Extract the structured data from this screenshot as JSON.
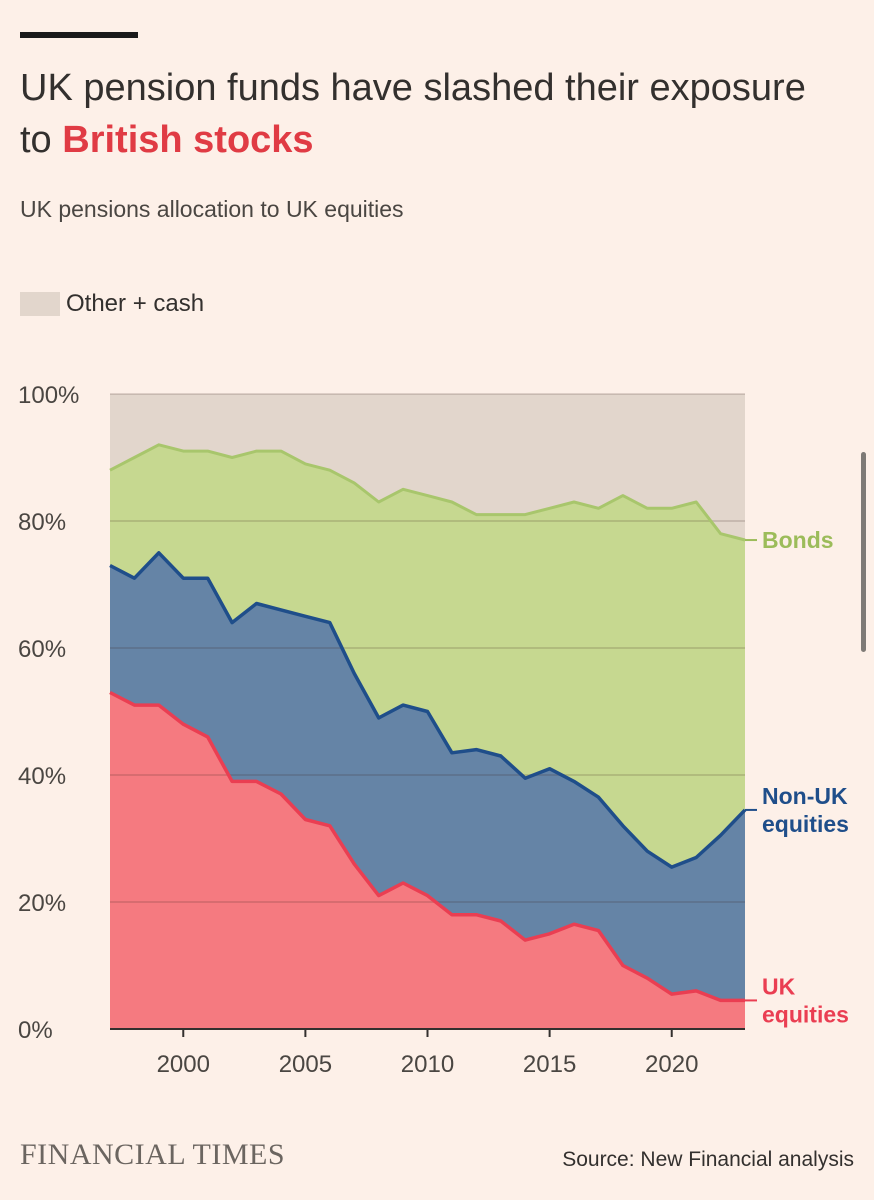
{
  "header": {
    "title_part1": "UK pension funds have slashed their exposure to ",
    "title_highlight": "British stocks",
    "subtitle": "UK pensions allocation to UK equities"
  },
  "legend": {
    "other_label": "Other + cash"
  },
  "footer": {
    "brand": "FINANCIAL TIMES",
    "source": "Source: New Financial analysis"
  },
  "colors": {
    "background": "#fdf0e8",
    "other": "#e2d6cc",
    "bonds_fill": "#c6d890",
    "bonds_line": "#a8c66c",
    "bonds_label": "#9cbc5a",
    "nonuk_fill": "#6584a6",
    "nonuk_line": "#1f4e8a",
    "uk_fill": "#f57a80",
    "uk_line": "#ea3e52",
    "title_highlight": "#e03b44"
  },
  "chart_data": {
    "type": "area",
    "stacked_boundaries": true,
    "x": [
      1997,
      1998,
      1999,
      2000,
      2001,
      2002,
      2003,
      2004,
      2005,
      2006,
      2007,
      2008,
      2009,
      2010,
      2011,
      2012,
      2013,
      2014,
      2015,
      2016,
      2017,
      2018,
      2019,
      2020,
      2021,
      2022,
      2023
    ],
    "xticks": [
      2000,
      2005,
      2010,
      2015,
      2020
    ],
    "yticks": [
      0,
      20,
      40,
      60,
      80,
      100
    ],
    "ytick_labels": [
      "0%",
      "20%",
      "40%",
      "60%",
      "80%",
      "100%"
    ],
    "ylim": [
      0,
      100
    ],
    "xlabel": "",
    "ylabel": "",
    "grid": true,
    "series": [
      {
        "name": "UK equities",
        "label_lines": [
          "UK",
          "equities"
        ],
        "values": [
          53,
          51,
          51,
          48,
          46,
          39,
          39,
          37,
          33,
          32,
          26,
          21,
          23,
          21,
          18,
          18,
          17,
          14,
          15,
          16.5,
          15.5,
          10,
          8,
          5.5,
          6,
          4.5,
          4.5
        ]
      },
      {
        "name": "Non-UK equities",
        "label_lines": [
          "Non-UK",
          "equities"
        ],
        "values": [
          73,
          71,
          75,
          71,
          71,
          64,
          67,
          66,
          65,
          64,
          56,
          49,
          51,
          50,
          43.5,
          44,
          43,
          39.5,
          41,
          39,
          36.5,
          32,
          28,
          25.5,
          27,
          30.5,
          34.5
        ]
      },
      {
        "name": "Bonds",
        "label_lines": [
          "Bonds"
        ],
        "values": [
          88,
          90,
          92,
          91,
          91,
          90,
          91,
          91,
          89,
          88,
          86,
          83,
          85,
          84,
          83,
          81,
          81,
          81,
          82,
          83,
          82,
          84,
          82,
          82,
          83,
          78,
          77
        ]
      },
      {
        "name": "Other + cash",
        "values": [
          100,
          100,
          100,
          100,
          100,
          100,
          100,
          100,
          100,
          100,
          100,
          100,
          100,
          100,
          100,
          100,
          100,
          100,
          100,
          100,
          100,
          100,
          100,
          100,
          100,
          100,
          100
        ]
      }
    ]
  }
}
